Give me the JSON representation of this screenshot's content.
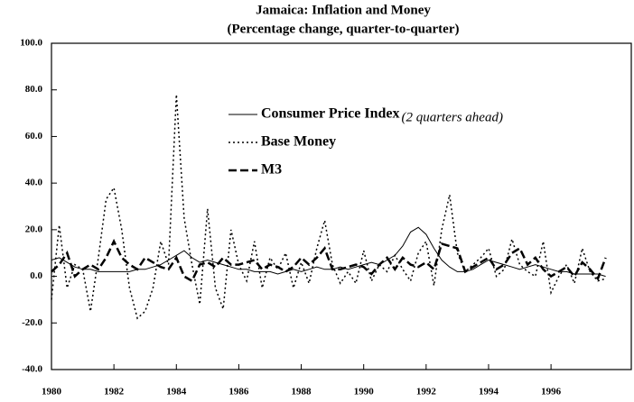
{
  "chart_data": {
    "type": "line",
    "title": "Jamaica:  Inflation and Money",
    "subtitle": "(Percentage change, quarter-to-quarter)",
    "annotation": "(2 quarters ahead)",
    "x": [
      1980,
      1980.25,
      1980.5,
      1980.75,
      1981,
      1981.25,
      1981.5,
      1981.75,
      1982,
      1982.25,
      1982.5,
      1982.75,
      1983,
      1983.25,
      1983.5,
      1983.75,
      1984,
      1984.25,
      1984.5,
      1984.75,
      1985,
      1985.25,
      1985.5,
      1985.75,
      1986,
      1986.25,
      1986.5,
      1986.75,
      1987,
      1987.25,
      1987.5,
      1987.75,
      1988,
      1988.25,
      1988.5,
      1988.75,
      1989,
      1989.25,
      1989.5,
      1989.75,
      1990,
      1990.25,
      1990.5,
      1990.75,
      1991,
      1991.25,
      1991.5,
      1991.75,
      1992,
      1992.25,
      1992.5,
      1992.75,
      1993,
      1993.25,
      1993.5,
      1993.75,
      1994,
      1994.25,
      1994.5,
      1994.75,
      1995,
      1995.25,
      1995.5,
      1995.75,
      1996,
      1996.25,
      1996.5,
      1996.75,
      1997,
      1997.25,
      1997.5,
      1997.75
    ],
    "series": [
      {
        "name": "Consumer Price Index",
        "color": "#000000",
        "style": "solid",
        "values": [
          7,
          8,
          6,
          4,
          3,
          3,
          2,
          2,
          2,
          2,
          2,
          3,
          3,
          4,
          5,
          7,
          9,
          11,
          8,
          6,
          7,
          6,
          5,
          4,
          3,
          3,
          2,
          2,
          2,
          1,
          2,
          3,
          2,
          3,
          4,
          3,
          3,
          4,
          3,
          4,
          5,
          6,
          5,
          7,
          9,
          13,
          19,
          21,
          18,
          12,
          7,
          4,
          2,
          2,
          3,
          5,
          7,
          6,
          5,
          4,
          3,
          4,
          5,
          4,
          3,
          2,
          2,
          1,
          1,
          1,
          1,
          0
        ]
      },
      {
        "name": "Base Money",
        "color": "#000000",
        "style": "dotted",
        "values": [
          -10,
          22,
          -5,
          5,
          3,
          -15,
          8,
          33,
          38,
          20,
          -5,
          -18,
          -15,
          -5,
          15,
          5,
          78,
          25,
          5,
          -12,
          29,
          -5,
          -14,
          20,
          5,
          -2,
          15,
          -5,
          8,
          3,
          10,
          -5,
          6,
          -3,
          12,
          24,
          5,
          -3,
          2,
          -3,
          11,
          -2,
          5,
          2,
          9,
          3,
          -2,
          10,
          15,
          -4,
          20,
          35,
          10,
          2,
          5,
          8,
          12,
          0,
          3,
          16,
          5,
          2,
          0,
          15,
          -7,
          0,
          5,
          -3,
          12,
          2,
          -2,
          -1
        ]
      },
      {
        "name": "M3",
        "color": "#000000",
        "style": "dashed",
        "values": [
          2,
          5,
          10,
          0,
          3,
          5,
          3,
          8,
          15,
          8,
          5,
          3,
          8,
          6,
          4,
          3,
          8,
          0,
          -2,
          5,
          6,
          4,
          8,
          5,
          5,
          6,
          7,
          3,
          5,
          4,
          2,
          4,
          8,
          5,
          8,
          12,
          3,
          3,
          4,
          5,
          4,
          1,
          5,
          8,
          3,
          8,
          5,
          4,
          6,
          3,
          14,
          13,
          12,
          2,
          4,
          6,
          8,
          3,
          5,
          10,
          12,
          5,
          8,
          3,
          0,
          2,
          4,
          0,
          6,
          3,
          -1,
          8
        ]
      }
    ],
    "xlim": [
      1980,
      1998.6
    ],
    "xticks": [
      1980,
      1982,
      1984,
      1986,
      1988,
      1990,
      1992,
      1994,
      1996
    ],
    "ylim": [
      -40,
      100
    ],
    "yticks": [
      {
        "value": -40,
        "label": "-40.0"
      },
      {
        "value": -20,
        "label": "-20.0"
      },
      {
        "value": 0,
        "label": "0.0"
      },
      {
        "value": 20,
        "label": "20.0"
      },
      {
        "value": 40,
        "label": "40.0"
      },
      {
        "value": 60,
        "label": "60.0"
      },
      {
        "value": 80,
        "label": "80.0"
      },
      {
        "value": 100,
        "label": "100.0"
      }
    ]
  }
}
